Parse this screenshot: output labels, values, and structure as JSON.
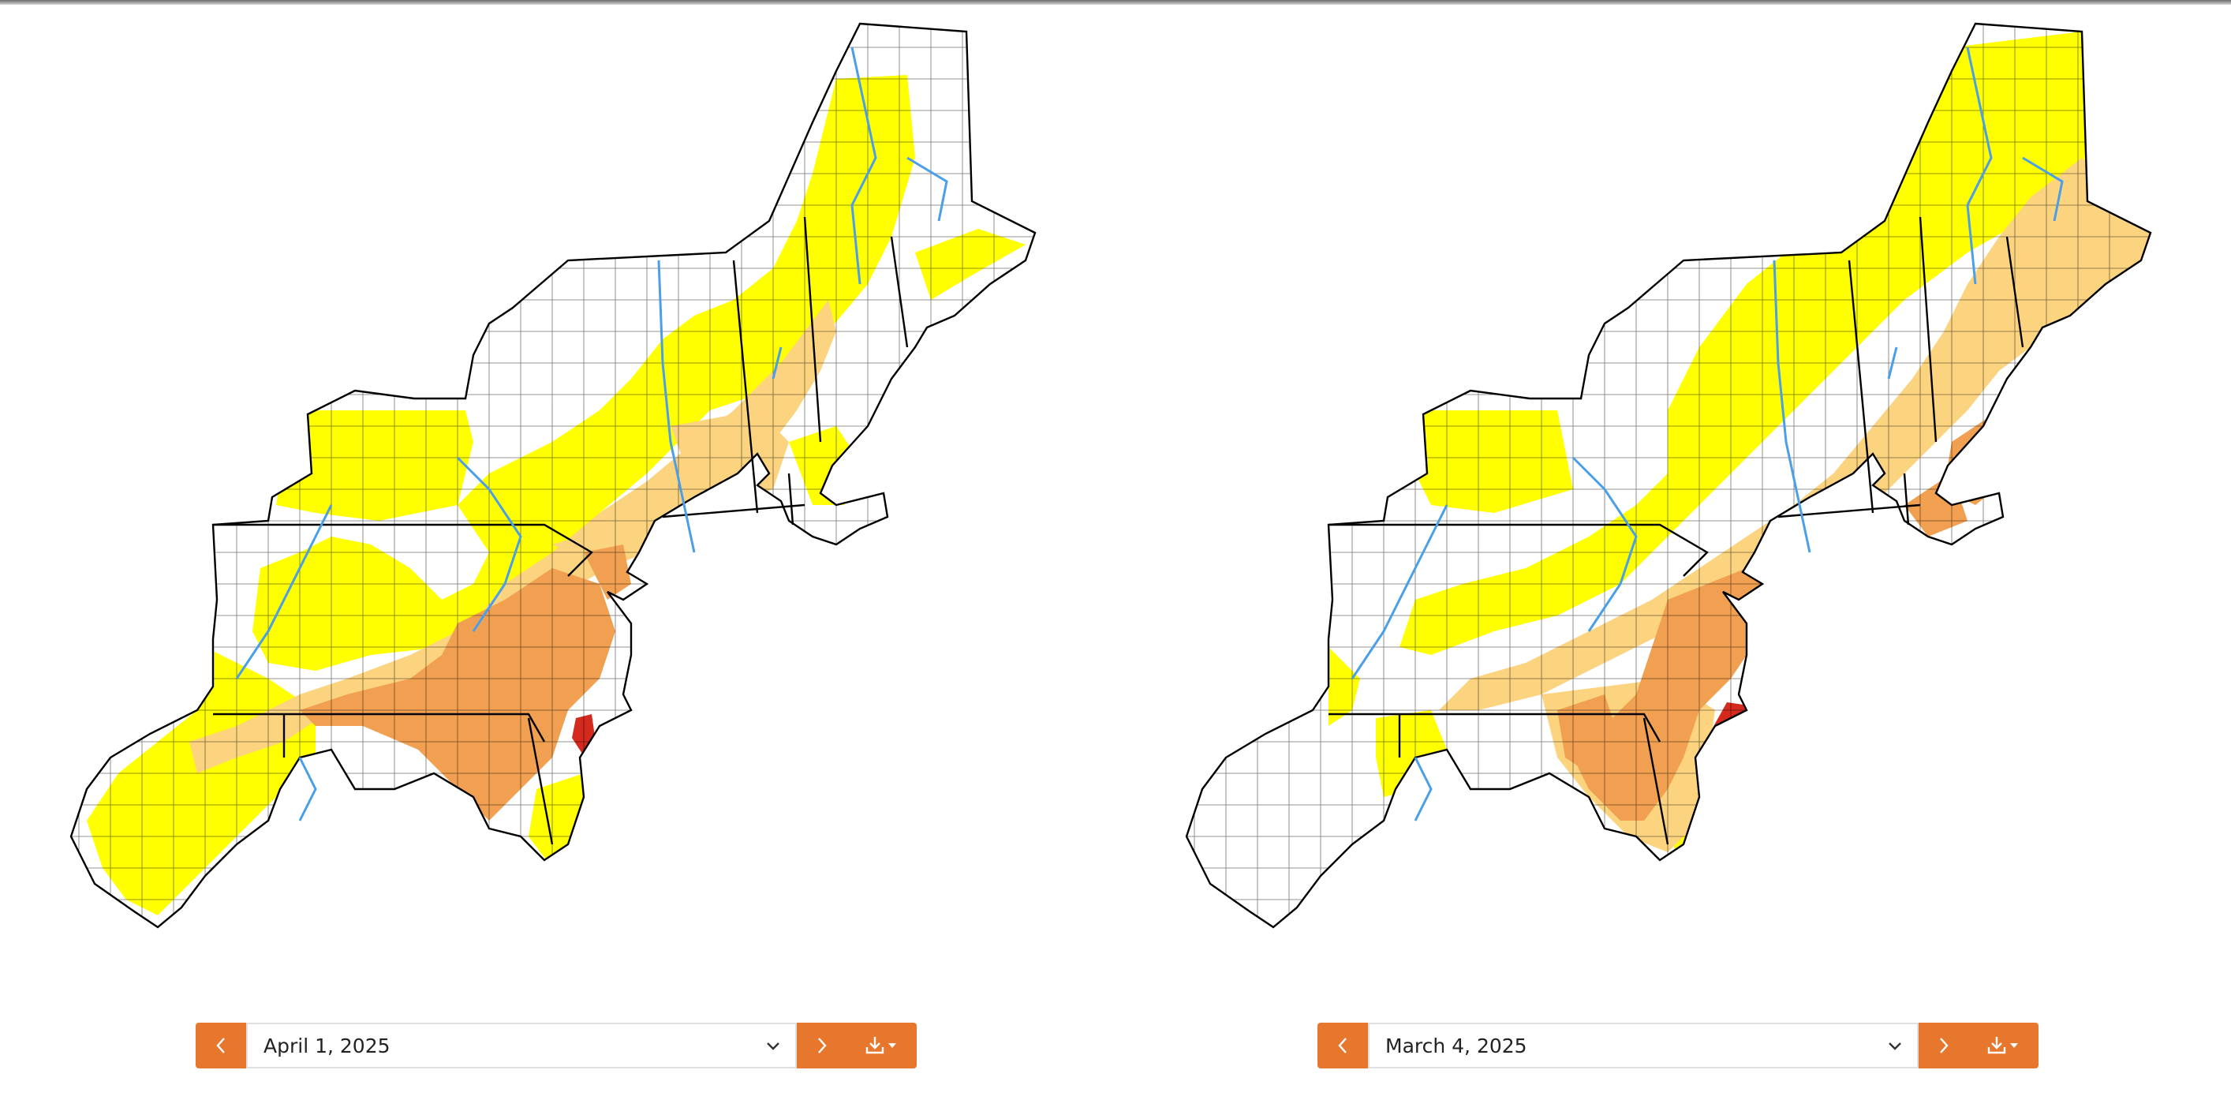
{
  "theme": {
    "accent": "#e8772e",
    "colors": {
      "none": "#ffffff",
      "d0": "#ffff00",
      "d1": "#fcd37f",
      "d2": "#ffaa00",
      "d3": "#e60000",
      "d2_render": "#f0a050",
      "d3_render": "#d42a1e",
      "water": "#4a9fe8",
      "border": "#000000"
    }
  },
  "left_panel": {
    "date_label": "April 1, 2025",
    "icons": {
      "prev": "chevron-left-icon",
      "dropdown": "chevron-down-icon",
      "next": "chevron-right-icon",
      "download": "download-icon"
    }
  },
  "right_panel": {
    "date_label": "March 4, 2025",
    "icons": {
      "prev": "chevron-left-icon",
      "dropdown": "chevron-down-icon",
      "next": "chevron-right-icon",
      "download": "download-icon"
    }
  }
}
